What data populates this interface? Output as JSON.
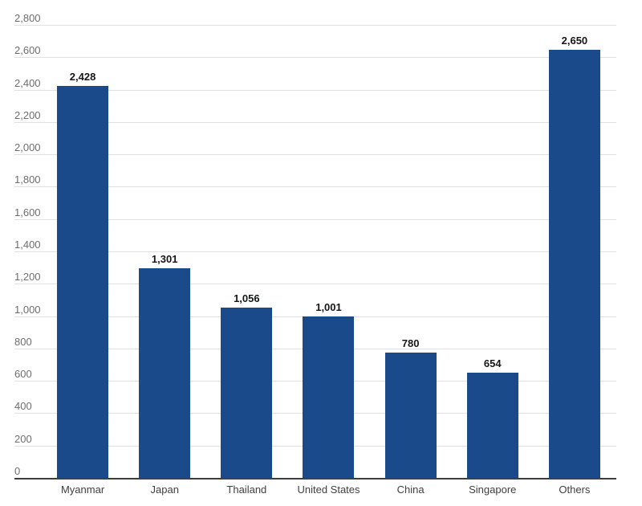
{
  "chart_data": {
    "type": "bar",
    "title": "",
    "xlabel": "",
    "ylabel": "",
    "categories": [
      "Myanmar",
      "Japan",
      "Thailand",
      "United States",
      "China",
      "Singapore",
      "Others"
    ],
    "values": [
      2428,
      1301,
      1056,
      1001,
      780,
      654,
      2650
    ],
    "value_labels": [
      "2,428",
      "1,301",
      "1,056",
      "1,001",
      "780",
      "654",
      "2,650"
    ],
    "ylim": [
      0,
      2800
    ],
    "ytick_step": 200,
    "ytick_labels": [
      "0",
      "200",
      "400",
      "600",
      "800",
      "1,000",
      "1,200",
      "1,400",
      "1,600",
      "1,800",
      "2,000",
      "2,200",
      "2,400",
      "2,600",
      "2,800"
    ],
    "grid": true,
    "legend": false
  },
  "colors": {
    "background": "#ffffff",
    "bar": "#1a4a8a",
    "gridline": "#e0e0e0",
    "axis_line": "#3c3c3c",
    "ytick_text": "#6e6e6e",
    "xtick_text": "#404040",
    "value_text": "#161616"
  }
}
